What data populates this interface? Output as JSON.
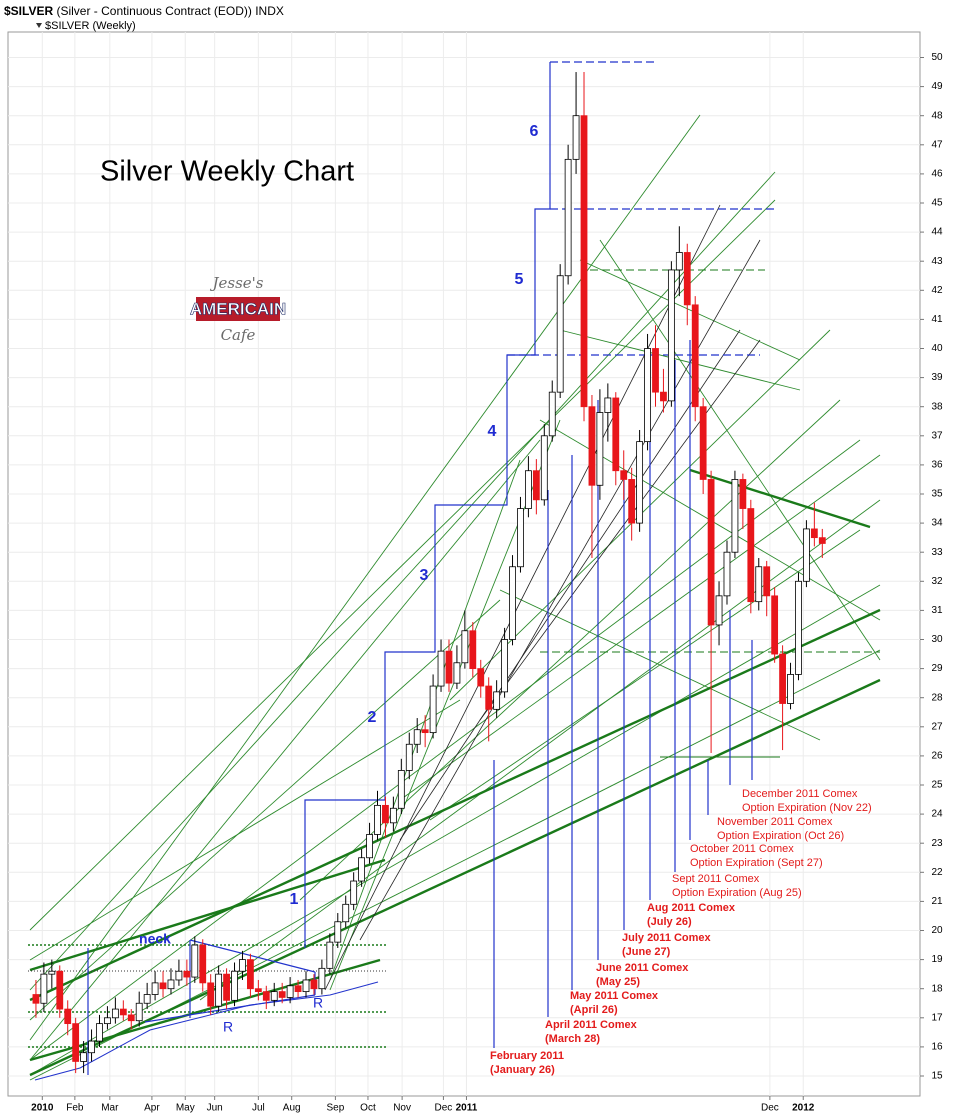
{
  "chart_data": {
    "type": "candlestick",
    "header": {
      "symbol": "$SILVER",
      "description": "(Silver - Continuous Contract (EOD)) INDX",
      "legend": "$SILVER (Weekly)"
    },
    "title": "Silver Weekly Chart",
    "logo": {
      "top": "Jesse's",
      "middle": "AMERICAIN",
      "bottom": "Cafe"
    },
    "waves": [
      "1",
      "2",
      "3",
      "4",
      "5",
      "6"
    ],
    "pattern_labels": [
      "neck",
      "R",
      "R"
    ],
    "annotations": [
      [
        "February 2011",
        "(January 26)"
      ],
      [
        "April 2011 Comex",
        "(March 28)"
      ],
      [
        "May 2011 Comex",
        "(April 26)"
      ],
      [
        "June 2011 Comex",
        "(May 25)"
      ],
      [
        "July 2011 Comex",
        "(June 27)"
      ],
      [
        "Aug 2011 Comex",
        "(July 26)"
      ],
      [
        "Sept 2011 Comex",
        "Option Expiration (Aug 25)"
      ],
      [
        "October 2011 Comex",
        "Option Expiration (Sept 27)"
      ],
      [
        "November 2011 Comex",
        "Option Expiration (Oct 26)"
      ],
      [
        "December 2011 Comex",
        "Option Expiration (Nov 22)"
      ]
    ],
    "open": [
      17.8,
      17.5,
      18.5,
      18.6,
      17.3,
      16.8,
      15.5,
      15.8,
      16.2,
      16.8,
      17.0,
      17.3,
      17.1,
      16.9,
      17.5,
      17.8,
      18.2,
      18.0,
      18.3,
      18.6,
      18.4,
      19.5,
      18.2,
      17.4,
      18.5,
      17.6,
      18.6,
      19.0,
      18.0,
      17.9,
      17.6,
      17.9,
      17.7,
      18.1,
      17.9,
      18.3,
      18.0,
      18.7,
      19.6,
      20.3,
      20.9,
      21.7,
      22.5,
      23.3,
      24.3,
      23.7,
      24.2,
      25.5,
      26.4,
      26.9,
      26.8,
      28.4,
      29.6,
      28.5,
      29.2,
      30.3,
      29.0,
      28.4,
      27.6,
      28.2,
      30.0,
      32.5,
      34.5,
      35.8,
      34.8,
      37.0,
      38.5,
      42.5,
      46.5,
      48.0,
      38.0,
      35.3,
      37.8,
      38.3,
      35.8,
      35.5,
      34.0,
      36.8,
      40.0,
      38.5,
      38.2,
      42.7,
      43.3,
      41.5,
      38.0,
      35.5,
      30.5,
      31.5,
      33.0,
      35.5,
      34.5,
      31.3,
      32.5,
      31.5,
      29.5,
      27.8,
      28.8,
      32.0,
      33.8,
      33.5
    ],
    "high": [
      18.3,
      18.9,
      19.0,
      18.8,
      17.6,
      17.0,
      16.2,
      16.6,
      17.1,
      17.4,
      17.7,
      17.6,
      17.3,
      17.9,
      18.2,
      18.6,
      18.6,
      18.7,
      19.0,
      19.0,
      19.8,
      19.7,
      18.5,
      18.8,
      18.7,
      18.9,
      19.3,
      19.2,
      18.3,
      18.1,
      18.2,
      18.2,
      18.4,
      18.3,
      18.6,
      18.5,
      19.0,
      19.9,
      20.6,
      21.2,
      22.0,
      22.8,
      23.7,
      24.8,
      24.6,
      24.6,
      25.9,
      26.8,
      27.3,
      27.4,
      28.8,
      30.0,
      30.0,
      29.8,
      31.0,
      30.6,
      29.3,
      28.7,
      28.6,
      30.4,
      32.9,
      34.9,
      36.3,
      36.2,
      37.4,
      38.9,
      42.9,
      47.0,
      49.5,
      49.5,
      38.4,
      38.6,
      38.8,
      38.5,
      36.5,
      35.9,
      37.2,
      40.5,
      40.8,
      39.3,
      43.0,
      44.2,
      43.6,
      41.8,
      38.3,
      35.8,
      32.0,
      33.4,
      35.8,
      35.7,
      34.8,
      32.8,
      32.7,
      31.8,
      29.8,
      29.2,
      32.3,
      34.1,
      34.7,
      33.8
    ],
    "low": [
      17.0,
      17.2,
      18.0,
      17.0,
      16.4,
      15.1,
      15.1,
      15.5,
      16.0,
      16.6,
      16.8,
      16.9,
      16.6,
      16.7,
      17.3,
      17.6,
      17.7,
      17.8,
      18.1,
      18.1,
      18.2,
      17.9,
      17.1,
      17.2,
      17.3,
      17.4,
      18.3,
      17.7,
      17.6,
      17.3,
      17.4,
      17.5,
      17.5,
      17.7,
      17.7,
      17.8,
      17.8,
      18.5,
      19.4,
      20.1,
      20.7,
      21.5,
      22.3,
      23.1,
      23.2,
      23.4,
      24.0,
      25.2,
      26.1,
      26.3,
      26.6,
      28.2,
      28.2,
      28.3,
      29.0,
      28.7,
      28.0,
      26.5,
      27.3,
      28.0,
      29.8,
      32.3,
      34.2,
      34.3,
      34.6,
      36.8,
      38.3,
      42.2,
      46.0,
      37.5,
      32.8,
      34.8,
      36.8,
      35.3,
      34.8,
      33.4,
      33.7,
      36.5,
      38.0,
      37.8,
      38.0,
      41.8,
      40.8,
      37.5,
      35.0,
      26.1,
      29.8,
      31.2,
      32.8,
      33.8,
      30.9,
      31.0,
      30.8,
      29.2,
      26.2,
      27.6,
      28.6,
      31.8,
      33.2,
      32.8
    ],
    "close": [
      17.5,
      18.5,
      18.6,
      17.3,
      16.8,
      15.5,
      15.8,
      16.2,
      16.8,
      17.0,
      17.3,
      17.1,
      16.9,
      17.5,
      17.8,
      18.2,
      18.0,
      18.3,
      18.6,
      18.4,
      19.5,
      18.2,
      17.4,
      18.5,
      17.6,
      18.6,
      19.0,
      18.0,
      17.9,
      17.6,
      17.9,
      17.7,
      18.1,
      17.9,
      18.3,
      18.0,
      18.7,
      19.6,
      20.3,
      20.9,
      21.7,
      22.5,
      23.3,
      24.3,
      23.7,
      24.2,
      25.5,
      26.4,
      26.9,
      26.8,
      28.4,
      29.6,
      28.5,
      29.2,
      30.3,
      29.0,
      28.4,
      27.6,
      28.2,
      30.0,
      32.5,
      34.5,
      35.8,
      34.8,
      37.0,
      38.5,
      42.5,
      46.5,
      48.0,
      38.0,
      35.3,
      37.8,
      38.3,
      35.8,
      35.5,
      34.0,
      36.8,
      40.0,
      38.5,
      38.2,
      42.7,
      43.3,
      41.5,
      38.0,
      35.5,
      30.5,
      31.5,
      33.0,
      35.5,
      34.5,
      31.3,
      32.5,
      31.5,
      29.5,
      27.8,
      28.8,
      32.0,
      33.8,
      33.5,
      33.3
    ],
    "up_color": "#ffffff",
    "down_color": "#e8161b",
    "xlim": [
      -1,
      111.3
    ],
    "xticks": [
      {
        "value": 0.8,
        "label": "2010"
      },
      {
        "value": 4.9,
        "label": "Feb"
      },
      {
        "value": 9.3,
        "label": "Mar"
      },
      {
        "value": 14.6,
        "label": "Apr"
      },
      {
        "value": 18.8,
        "label": "May"
      },
      {
        "value": 22.5,
        "label": "Jun"
      },
      {
        "value": 28,
        "label": "Jul"
      },
      {
        "value": 32.2,
        "label": "Aug"
      },
      {
        "value": 37.7,
        "label": "Sep"
      },
      {
        "value": 41.8,
        "label": "Oct"
      },
      {
        "value": 46.1,
        "label": "Nov"
      },
      {
        "value": 51.3,
        "label": "Dec"
      },
      {
        "value": 54.2,
        "label": "2011"
      },
      {
        "value": 92.4,
        "label": "Dec"
      },
      {
        "value": 96.6,
        "label": "2012"
      }
    ],
    "ylim": [
      15,
      50
    ],
    "yticks": [
      15,
      16,
      17,
      18,
      19,
      20,
      21,
      22,
      23,
      24,
      25,
      26,
      27,
      28,
      29,
      30,
      31,
      32,
      33,
      34,
      35,
      36,
      37,
      38,
      39,
      40,
      41,
      42,
      43,
      44,
      45,
      46,
      47,
      48,
      49,
      50
    ],
    "grid": true
  }
}
